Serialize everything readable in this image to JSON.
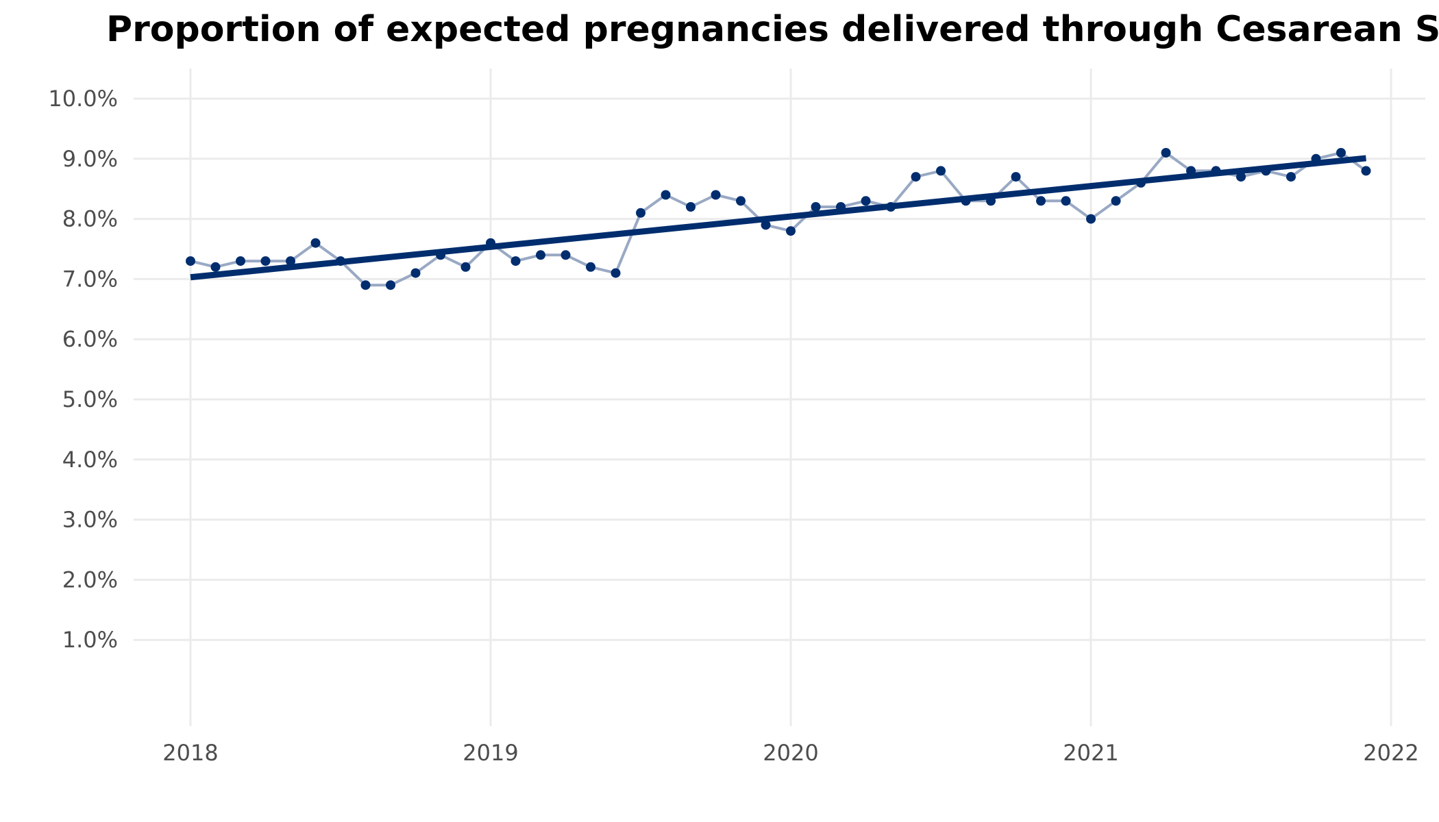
{
  "colors": {
    "trend": "#002D6E",
    "series_line": "#99A9C4",
    "point": "#002D6E",
    "grid": "#EBEBEB",
    "text": "#4D4D4D",
    "title": "#000000"
  },
  "chart_data": {
    "type": "line",
    "title": "Proportion of expected pregnancies delivered through Cesarean Section",
    "xlabel": "",
    "ylabel": "",
    "xlim": [
      2018,
      2022
    ],
    "ylim": [
      0,
      10
    ],
    "grid": true,
    "legend": "none",
    "x_ticks": [
      "2018",
      "2019",
      "2020",
      "2021",
      "2022"
    ],
    "y_ticks": [
      "1.0%",
      "2.0%",
      "3.0%",
      "4.0%",
      "5.0%",
      "6.0%",
      "7.0%",
      "8.0%",
      "9.0%",
      "10.0%"
    ],
    "series": [
      {
        "x": [
          "2018-01",
          "2018-02",
          "2018-03",
          "2018-04",
          "2018-05",
          "2018-06",
          "2018-07",
          "2018-08",
          "2018-09",
          "2018-10",
          "2018-11",
          "2018-12",
          "2019-01",
          "2019-02",
          "2019-03",
          "2019-04",
          "2019-05",
          "2019-06",
          "2019-07",
          "2019-08",
          "2019-09",
          "2019-10",
          "2019-11",
          "2019-12",
          "2020-01",
          "2020-02",
          "2020-03",
          "2020-04",
          "2020-05",
          "2020-06",
          "2020-07",
          "2020-08",
          "2020-09",
          "2020-10",
          "2020-11",
          "2020-12",
          "2021-01",
          "2021-02",
          "2021-03",
          "2021-04",
          "2021-05",
          "2021-06",
          "2021-07",
          "2021-08",
          "2021-09",
          "2021-10",
          "2021-11",
          "2021-12"
        ],
        "values": [
          7.3,
          7.2,
          7.3,
          7.3,
          7.3,
          7.6,
          7.3,
          6.9,
          6.9,
          7.1,
          7.4,
          7.2,
          7.6,
          7.3,
          7.4,
          7.4,
          7.2,
          7.1,
          8.1,
          8.4,
          8.2,
          8.4,
          8.3,
          7.9,
          7.8,
          8.2,
          8.2,
          8.3,
          8.2,
          8.7,
          8.8,
          8.3,
          8.3,
          8.7,
          8.3,
          8.3,
          8.0,
          8.3,
          8.6,
          9.1,
          8.8,
          8.8,
          8.7,
          8.8,
          8.7,
          9.0,
          9.1,
          8.8
        ]
      }
    ],
    "trend": {
      "x": [
        "2018-01",
        "2021-12"
      ],
      "values": [
        7.03,
        9.01
      ]
    }
  }
}
